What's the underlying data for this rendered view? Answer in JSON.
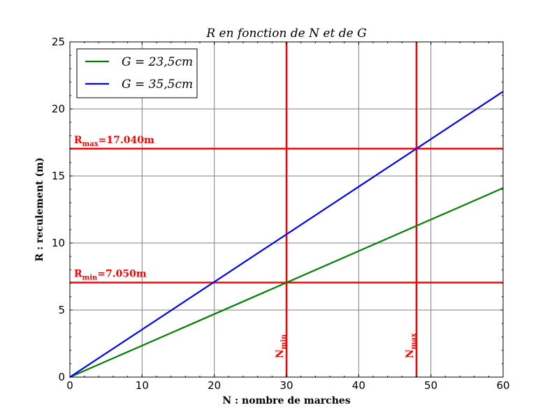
{
  "chart_data": {
    "type": "line",
    "title": "R en fonction de N et de G",
    "xlabel": "N : nombre de marches",
    "ylabel": "R : reculement (m)",
    "xlim": [
      0,
      60
    ],
    "ylim": [
      0,
      25
    ],
    "xticks": [
      0,
      10,
      20,
      30,
      40,
      50,
      60
    ],
    "yticks": [
      0,
      5,
      10,
      15,
      20,
      25
    ],
    "grid": true,
    "legend_position": "top-left",
    "series": [
      {
        "name": "G = 23,5cm",
        "color": "#008000",
        "x": [
          0,
          60
        ],
        "y": [
          0,
          14.1
        ]
      },
      {
        "name": "G = 35,5cm",
        "color": "#0000ff",
        "x": [
          0,
          60
        ],
        "y": [
          0,
          21.3
        ]
      }
    ],
    "reference_lines": [
      {
        "orientation": "horizontal",
        "value": 17.04,
        "color": "#ff0000",
        "label": "R_max = 17.040m",
        "label_main": "R",
        "label_sub": "max",
        "label_rest": "=17.040m"
      },
      {
        "orientation": "horizontal",
        "value": 7.05,
        "color": "#ff0000",
        "label": "R_min = 7.050m",
        "label_main": "R",
        "label_sub": "min",
        "label_rest": "=7.050m"
      },
      {
        "orientation": "vertical",
        "value": 30,
        "color": "#ff0000",
        "label": "N_min",
        "label_main": "N",
        "label_sub": "min"
      },
      {
        "orientation": "vertical",
        "value": 48,
        "color": "#ff0000",
        "label": "N_max",
        "label_main": "N",
        "label_sub": "max"
      }
    ]
  }
}
